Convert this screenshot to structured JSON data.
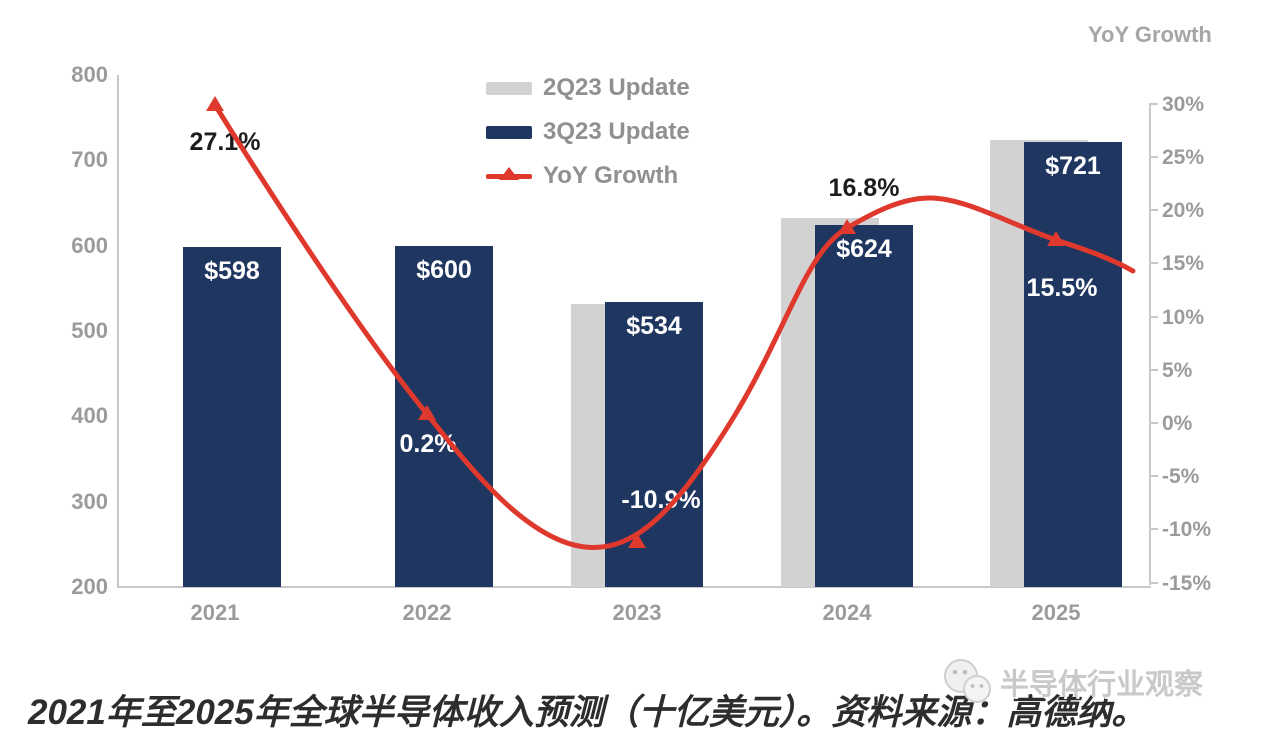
{
  "right_axis_title": "YoY Growth",
  "legend": {
    "items": [
      {
        "label": "2Q23 Update"
      },
      {
        "label": "3Q23 Update"
      },
      {
        "label": "YoY Growth"
      }
    ]
  },
  "chart_data": {
    "type": "combo bar + line",
    "categories": [
      "2021",
      "2022",
      "2023",
      "2024",
      "2025"
    ],
    "series": [
      {
        "name": "2Q23 Update",
        "type": "bar",
        "color": "#d2d2d2",
        "values": [
          null,
          null,
          532,
          633,
          724
        ]
      },
      {
        "name": "3Q23 Update",
        "type": "bar",
        "color": "#1f3660",
        "values": [
          598,
          600,
          534,
          624,
          721
        ],
        "labels": [
          "$598",
          "$600",
          "$534",
          "$624",
          "$721"
        ]
      },
      {
        "name": "YoY Growth",
        "type": "line",
        "color": "#df382d",
        "values": [
          27.1,
          0.2,
          -10.9,
          16.8,
          15.5
        ],
        "labels": [
          "27.1%",
          "0.2%",
          "-10.9%",
          "16.8%",
          "15.5%"
        ]
      }
    ],
    "left_axis": {
      "ticks": [
        800,
        700,
        600,
        500,
        400,
        300,
        200
      ],
      "range": [
        200,
        800
      ]
    },
    "right_axis": {
      "tick_labels": [
        "30%",
        "25%",
        "20%",
        "15%",
        "10%",
        "5%",
        "0%",
        "-5%",
        "-10%",
        "-15%"
      ],
      "tick_values": [
        30,
        25,
        20,
        15,
        10,
        5,
        0,
        -5,
        -10,
        -15
      ],
      "range": [
        -15,
        30
      ],
      "title": "YoY Growth"
    },
    "grid": false,
    "legend_position": "top-center"
  },
  "caption": "2021年至2025年全球半导体收入预测（十亿美元）。资料来源：高德纳。",
  "watermark": {
    "text": "半导体行业观察",
    "icon": "wechat-icon"
  }
}
